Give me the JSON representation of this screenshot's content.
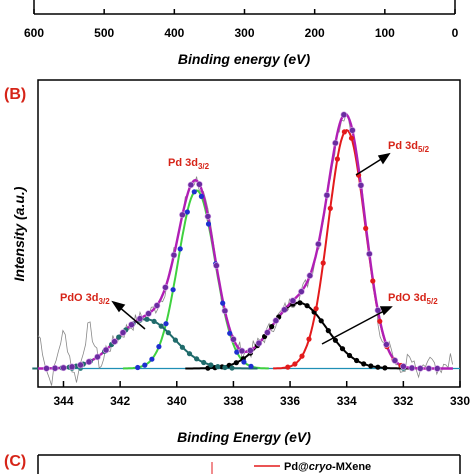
{
  "panel_a": {
    "xlabel": "Binding energy (eV)",
    "ticks": [
      "600",
      "500",
      "400",
      "300",
      "200",
      "100",
      "0"
    ]
  },
  "panel_b": {
    "label": "(B)",
    "annotations": {
      "pd32": {
        "base": "Pd 3d",
        "sub": "3/2"
      },
      "pd52": {
        "base": "Pd 3d",
        "sub": "5/2"
      },
      "pdo32": {
        "base": "PdO 3d",
        "sub": "3/2"
      },
      "pdo52": {
        "base": "PdO 3d",
        "sub": "5/2"
      }
    }
  },
  "panel_c": {
    "label": "(C)",
    "legend": {
      "prefix": "Pd@",
      "italic": "cryo",
      "suffix": "-MXene"
    }
  },
  "colors": {
    "envelope": "#b01fb5",
    "envelope_marker": "#6a2ca0",
    "pd52": "#e31a1c",
    "pd32_fit": "#3fd13f",
    "pd32_marker": "#1f2fd0",
    "pdo52": "#000000",
    "pdo32": "#1f6b6b",
    "raw": "#888888",
    "label": "#d62418"
  },
  "chart_data": {
    "type": "line",
    "xlabel": "Binding Energy (eV)",
    "ylabel": "Intensity (a.u.)",
    "xlim": [
      344.9,
      330
    ],
    "ylim": [
      0,
      100
    ],
    "x_ticks": [
      344,
      342,
      340,
      338,
      336,
      334,
      332,
      330
    ],
    "x_tick_labels": [
      "344",
      "342",
      "340",
      "338",
      "336",
      "334",
      "332",
      "330"
    ],
    "grid": false,
    "series": [
      {
        "name": "Pd 3d5/2",
        "peak": {
          "center": 334.0,
          "height": 87,
          "width": 0.65
        }
      },
      {
        "name": "Pd 3d3/2",
        "peak": {
          "center": 339.3,
          "height": 65,
          "width": 0.65
        }
      },
      {
        "name": "PdO 3d5/2",
        "peak": {
          "center": 335.7,
          "height": 24,
          "width": 1.0
        }
      },
      {
        "name": "PdO 3d3/2",
        "peak": {
          "center": 341.1,
          "height": 18,
          "width": 1.0
        }
      }
    ],
    "baseline": 2
  }
}
